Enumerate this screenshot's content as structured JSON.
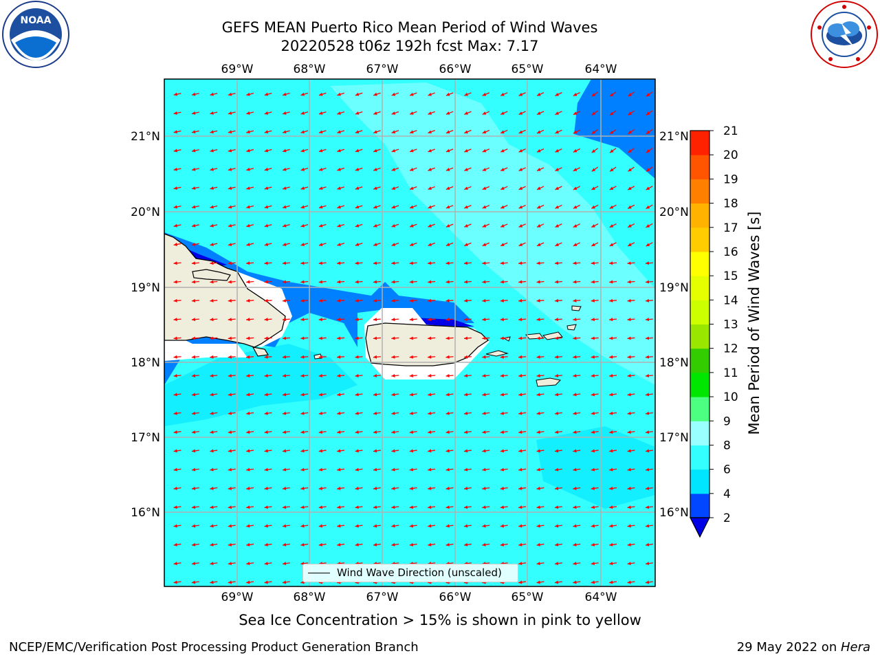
{
  "title": {
    "line1": "GEFS MEAN Puerto Rico Mean Period of Wind Waves",
    "line2": "20220528 t06z 192h fcst   Max: 7.17"
  },
  "map": {
    "lon_range": [
      -70,
      -63.25
    ],
    "lat_range": [
      15,
      21.75
    ],
    "lon_ticks": [
      "69°W",
      "68°W",
      "67°W",
      "66°W",
      "65°W",
      "64°W"
    ],
    "lat_ticks": [
      "21°N",
      "20°N",
      "19°N",
      "18°N",
      "17°N",
      "16°N"
    ],
    "grid": true,
    "legend_label": "Wind Wave Direction (unscaled)",
    "arrow_color": "#ff0000"
  },
  "colorbar": {
    "label": "Mean Period of Wind Waves [s]",
    "tick_labels": [
      "2",
      "4",
      "6",
      "8",
      "9",
      "10",
      "11",
      "12",
      "13",
      "14",
      "15",
      "16",
      "17",
      "18",
      "19",
      "20",
      "21"
    ],
    "level_colors": [
      "#0047ff",
      "#00e5ff",
      "#33ffff",
      "#99ffff",
      "#4dff80",
      "#00e600",
      "#33cc00",
      "#99e600",
      "#ccff00",
      "#e6ff00",
      "#ffff00",
      "#ffcc00",
      "#ffb300",
      "#ff8000",
      "#ff5500",
      "#ff2200"
    ],
    "under_color": "#0000e6"
  },
  "colors": {
    "land": "#efeddc",
    "ocean_main": "#33ffff",
    "ocean_light": "#99ffff",
    "ocean_mid": "#00e5ff",
    "ocean_dark": "#0080ff"
  },
  "logos": {
    "left_icon": "noaa-logo-icon",
    "right_icon": "nws-logo-icon"
  },
  "sea_ice_note": "Sea Ice Concentration > 15% is shown in pink to yellow",
  "footer": {
    "left": "NCEP/EMC/Verification Post Processing Product Generation Branch",
    "right_date": "29 May 2022 on ",
    "right_host": "Hera"
  }
}
